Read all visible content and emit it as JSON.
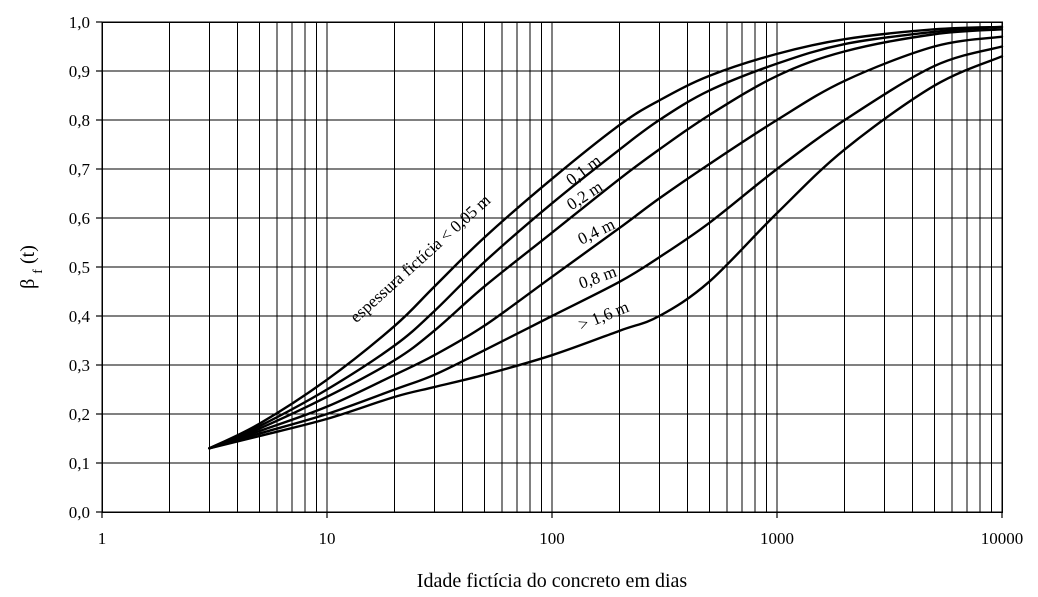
{
  "chart_data": {
    "type": "line",
    "xlabel": "Idade fictícia do concreto em dias",
    "ylabel_main": "β",
    "ylabel_sub": "f",
    "ylabel_suffix": " (t)",
    "x_scale": "log",
    "xlim": [
      1,
      10000
    ],
    "ylim": [
      0.0,
      1.0
    ],
    "grid": true,
    "x_tick_labels": [
      "1",
      "10",
      "100",
      "1000",
      "10000"
    ],
    "x_tick_values": [
      1,
      10,
      100,
      1000,
      10000
    ],
    "y_tick_labels": [
      "0,0",
      "0,1",
      "0,2",
      "0,3",
      "0,4",
      "0,5",
      "0,6",
      "0,7",
      "0,8",
      "0,9",
      "1,0"
    ],
    "y_tick_values": [
      0.0,
      0.1,
      0.2,
      0.3,
      0.4,
      0.5,
      0.6,
      0.7,
      0.8,
      0.9,
      1.0
    ],
    "series": [
      {
        "name": "espessura fictícia < 0,05 m",
        "x": [
          3,
          5,
          10,
          20,
          30,
          50,
          100,
          200,
          300,
          500,
          1000,
          2000,
          5000,
          10000
        ],
        "y": [
          0.13,
          0.18,
          0.27,
          0.38,
          0.46,
          0.56,
          0.68,
          0.79,
          0.84,
          0.89,
          0.935,
          0.965,
          0.985,
          0.99
        ]
      },
      {
        "name": "0,1 m",
        "x": [
          3,
          5,
          10,
          20,
          30,
          50,
          100,
          200,
          300,
          500,
          1000,
          2000,
          5000,
          10000
        ],
        "y": [
          0.13,
          0.175,
          0.25,
          0.34,
          0.41,
          0.51,
          0.63,
          0.74,
          0.8,
          0.86,
          0.915,
          0.955,
          0.98,
          0.99
        ]
      },
      {
        "name": "0,2 m",
        "x": [
          3,
          5,
          10,
          20,
          30,
          50,
          100,
          200,
          300,
          500,
          1000,
          2000,
          5000,
          10000
        ],
        "y": [
          0.13,
          0.17,
          0.235,
          0.31,
          0.37,
          0.46,
          0.57,
          0.68,
          0.74,
          0.81,
          0.89,
          0.94,
          0.975,
          0.985
        ]
      },
      {
        "name": "0,4 m",
        "x": [
          3,
          5,
          10,
          20,
          30,
          50,
          100,
          200,
          300,
          500,
          1000,
          2000,
          5000,
          10000
        ],
        "y": [
          0.13,
          0.165,
          0.215,
          0.28,
          0.32,
          0.38,
          0.48,
          0.58,
          0.64,
          0.71,
          0.8,
          0.88,
          0.95,
          0.97
        ]
      },
      {
        "name": "0,8 m",
        "x": [
          3,
          5,
          10,
          20,
          30,
          50,
          100,
          200,
          300,
          500,
          1000,
          2000,
          5000,
          10000
        ],
        "y": [
          0.13,
          0.16,
          0.2,
          0.25,
          0.28,
          0.33,
          0.4,
          0.47,
          0.52,
          0.59,
          0.7,
          0.8,
          0.91,
          0.95
        ]
      },
      {
        "name": "> 1,6 m",
        "x": [
          3,
          5,
          10,
          20,
          30,
          50,
          100,
          200,
          300,
          500,
          1000,
          2000,
          5000,
          10000
        ],
        "y": [
          0.13,
          0.155,
          0.19,
          0.235,
          0.255,
          0.28,
          0.32,
          0.37,
          0.4,
          0.47,
          0.61,
          0.74,
          0.87,
          0.93
        ]
      }
    ],
    "curve_labels": [
      {
        "text": "espessura fictícia < 0,05 m",
        "x": 13.5,
        "y": 0.385,
        "angle": -42
      },
      {
        "text": "0,1 m",
        "x": 122,
        "y": 0.665,
        "angle": -37
      },
      {
        "text": "0,2 m",
        "x": 122,
        "y": 0.615,
        "angle": -33
      },
      {
        "text": "0,4 m",
        "x": 135,
        "y": 0.545,
        "angle": -26
      },
      {
        "text": "0,8 m",
        "x": 135,
        "y": 0.455,
        "angle": -20
      },
      {
        "text": "> 1,6 m",
        "x": 135,
        "y": 0.37,
        "angle": -22
      }
    ]
  }
}
